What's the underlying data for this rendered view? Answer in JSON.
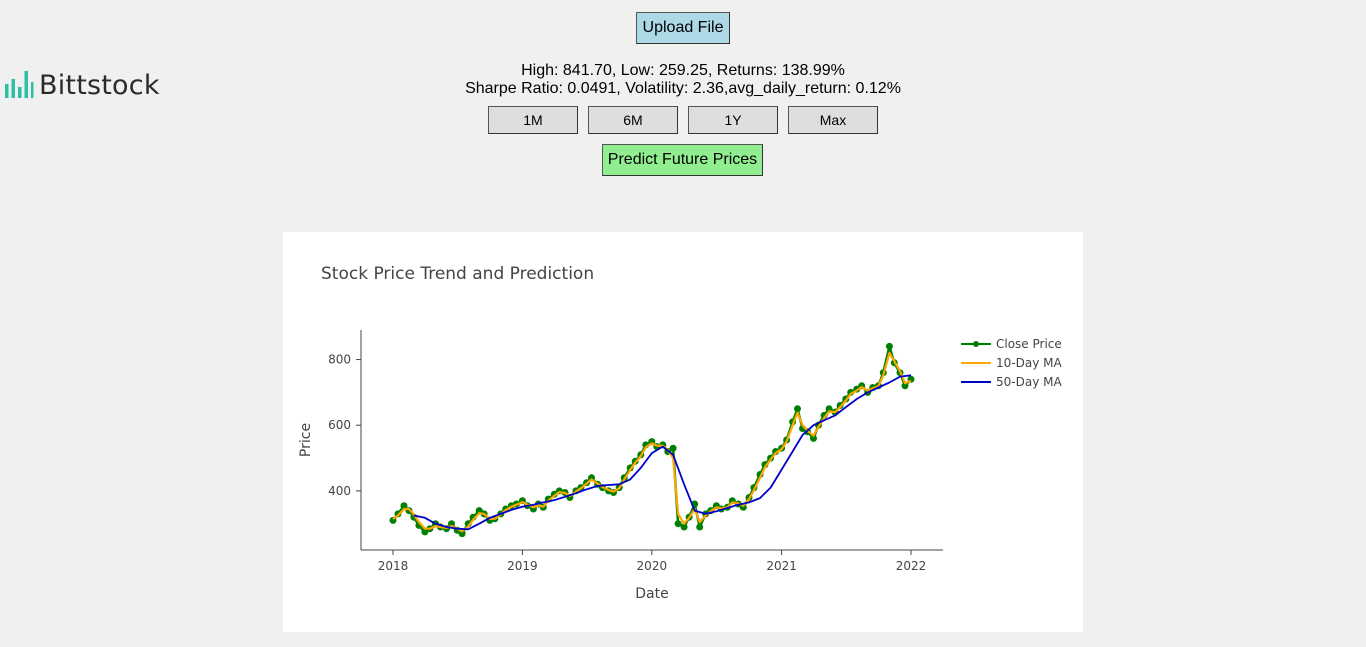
{
  "brand": {
    "name": "Bittstock",
    "icon": "bar-chart-icon",
    "color": "#2bbfa4"
  },
  "toolbar": {
    "upload_label": "Upload File",
    "predict_label": "Predict Future Prices",
    "range_buttons": [
      "1M",
      "6M",
      "1Y",
      "Max"
    ]
  },
  "stats": {
    "line1": "High: 841.70, Low: 259.25, Returns: 138.99%",
    "line2": "Sharpe Ratio: 0.0491, Volatility: 2.36,avg_daily_return: 0.12%"
  },
  "colors": {
    "upload_button": "#add8e6",
    "predict_button": "#90ee90",
    "close_price": "#008000",
    "ma10": "#ffa500",
    "ma50": "#0000cd"
  },
  "chart_data": {
    "type": "line",
    "title": "Stock Price Trend and Prediction",
    "xlabel": "Date",
    "ylabel": "Price",
    "xlim": [
      "2018-01-01",
      "2022-01-01"
    ],
    "ylim": [
      220,
      890
    ],
    "x_ticks": [
      "2018",
      "2019",
      "2020",
      "2021",
      "2022"
    ],
    "y_ticks": [
      400,
      600,
      800
    ],
    "grid": false,
    "legend": "top-right",
    "series": [
      {
        "name": "Close Price",
        "color": "#008000",
        "marker": true,
        "x": [
          "2018-01-01",
          "2018-01-15",
          "2018-02-01",
          "2018-02-15",
          "2018-03-01",
          "2018-03-15",
          "2018-04-01",
          "2018-04-15",
          "2018-05-01",
          "2018-05-15",
          "2018-06-01",
          "2018-06-15",
          "2018-07-01",
          "2018-07-15",
          "2018-08-01",
          "2018-08-15",
          "2018-09-01",
          "2018-09-15",
          "2018-10-01",
          "2018-10-15",
          "2018-11-01",
          "2018-11-15",
          "2018-12-01",
          "2018-12-15",
          "2019-01-01",
          "2019-01-15",
          "2019-02-01",
          "2019-02-15",
          "2019-03-01",
          "2019-03-15",
          "2019-04-01",
          "2019-04-15",
          "2019-05-01",
          "2019-05-15",
          "2019-06-01",
          "2019-06-15",
          "2019-07-01",
          "2019-07-15",
          "2019-08-01",
          "2019-08-15",
          "2019-09-01",
          "2019-09-15",
          "2019-10-01",
          "2019-10-15",
          "2019-11-01",
          "2019-11-15",
          "2019-12-01",
          "2019-12-15",
          "2020-01-01",
          "2020-01-15",
          "2020-02-01",
          "2020-02-15",
          "2020-03-01",
          "2020-03-15",
          "2020-04-01",
          "2020-04-15",
          "2020-05-01",
          "2020-05-15",
          "2020-06-01",
          "2020-06-15",
          "2020-07-01",
          "2020-07-15",
          "2020-08-01",
          "2020-08-15",
          "2020-09-01",
          "2020-09-15",
          "2020-10-01",
          "2020-10-15",
          "2020-11-01",
          "2020-11-15",
          "2020-12-01",
          "2020-12-15",
          "2021-01-01",
          "2021-01-15",
          "2021-02-01",
          "2021-02-15",
          "2021-03-01",
          "2021-03-15",
          "2021-04-01",
          "2021-04-15",
          "2021-05-01",
          "2021-05-15",
          "2021-06-01",
          "2021-06-15",
          "2021-07-01",
          "2021-07-15",
          "2021-08-01",
          "2021-08-15",
          "2021-09-01",
          "2021-09-15",
          "2021-10-01",
          "2021-10-15",
          "2021-11-01",
          "2021-11-15",
          "2021-12-01",
          "2021-12-15",
          "2022-01-01"
        ],
        "y": [
          310,
          330,
          355,
          340,
          320,
          295,
          275,
          285,
          300,
          290,
          285,
          300,
          280,
          270,
          300,
          320,
          340,
          330,
          310,
          315,
          330,
          345,
          355,
          360,
          370,
          355,
          345,
          360,
          350,
          375,
          390,
          400,
          395,
          380,
          400,
          410,
          425,
          440,
          420,
          410,
          400,
          395,
          410,
          440,
          470,
          490,
          510,
          540,
          550,
          535,
          540,
          520,
          530,
          300,
          290,
          320,
          360,
          290,
          330,
          340,
          355,
          345,
          350,
          370,
          360,
          350,
          380,
          410,
          450,
          480,
          500,
          520,
          530,
          555,
          610,
          650,
          590,
          580,
          560,
          600,
          630,
          650,
          640,
          660,
          680,
          700,
          710,
          720,
          700,
          715,
          720,
          760,
          840,
          790,
          760,
          720,
          740
        ]
      },
      {
        "name": "10-Day MA",
        "color": "#ffa500",
        "marker": false,
        "x": [
          "2018-01-01",
          "2018-01-15",
          "2018-02-01",
          "2018-02-15",
          "2018-03-01",
          "2018-03-15",
          "2018-04-01",
          "2018-04-15",
          "2018-05-01",
          "2018-05-15",
          "2018-06-01",
          "2018-06-15",
          "2018-07-01",
          "2018-07-15",
          "2018-08-01",
          "2018-08-15",
          "2018-09-01",
          "2018-09-15",
          "2018-10-01",
          "2018-10-15",
          "2018-11-01",
          "2018-11-15",
          "2018-12-01",
          "2018-12-15",
          "2019-01-01",
          "2019-01-15",
          "2019-02-01",
          "2019-02-15",
          "2019-03-01",
          "2019-03-15",
          "2019-04-01",
          "2019-04-15",
          "2019-05-01",
          "2019-05-15",
          "2019-06-01",
          "2019-06-15",
          "2019-07-01",
          "2019-07-15",
          "2019-08-01",
          "2019-08-15",
          "2019-09-01",
          "2019-09-15",
          "2019-10-01",
          "2019-10-15",
          "2019-11-01",
          "2019-11-15",
          "2019-12-01",
          "2019-12-15",
          "2020-01-01",
          "2020-01-15",
          "2020-02-01",
          "2020-02-15",
          "2020-03-01",
          "2020-03-15",
          "2020-04-01",
          "2020-04-15",
          "2020-05-01",
          "2020-05-15",
          "2020-06-01",
          "2020-06-15",
          "2020-07-01",
          "2020-07-15",
          "2020-08-01",
          "2020-08-15",
          "2020-09-01",
          "2020-09-15",
          "2020-10-01",
          "2020-10-15",
          "2020-11-01",
          "2020-11-15",
          "2020-12-01",
          "2020-12-15",
          "2021-01-01",
          "2021-01-15",
          "2021-02-01",
          "2021-02-15",
          "2021-03-01",
          "2021-03-15",
          "2021-04-01",
          "2021-04-15",
          "2021-05-01",
          "2021-05-15",
          "2021-06-01",
          "2021-06-15",
          "2021-07-01",
          "2021-07-15",
          "2021-08-01",
          "2021-08-15",
          "2021-09-01",
          "2021-09-15",
          "2021-10-01",
          "2021-10-15",
          "2021-11-01",
          "2021-11-15",
          "2021-12-01",
          "2021-12-15",
          "2022-01-01"
        ],
        "y": [
          315,
          325,
          345,
          345,
          328,
          305,
          285,
          285,
          293,
          290,
          287,
          293,
          285,
          277,
          292,
          312,
          332,
          330,
          315,
          315,
          328,
          342,
          352,
          358,
          366,
          358,
          350,
          356,
          352,
          370,
          385,
          396,
          394,
          384,
          398,
          408,
          422,
          435,
          422,
          412,
          403,
          398,
          408,
          435,
          464,
          486,
          506,
          533,
          545,
          538,
          537,
          525,
          500,
          330,
          300,
          318,
          345,
          305,
          325,
          338,
          350,
          347,
          350,
          365,
          362,
          355,
          375,
          402,
          440,
          472,
          495,
          515,
          527,
          550,
          600,
          638,
          600,
          583,
          568,
          595,
          622,
          642,
          640,
          655,
          675,
          695,
          706,
          716,
          705,
          712,
          719,
          752,
          820,
          795,
          765,
          728,
          735
        ]
      },
      {
        "name": "50-Day MA",
        "color": "#0000cd",
        "marker": false,
        "x": [
          "2018-03-01",
          "2018-04-01",
          "2018-05-01",
          "2018-06-01",
          "2018-07-01",
          "2018-08-01",
          "2018-09-01",
          "2018-10-01",
          "2018-11-01",
          "2018-12-01",
          "2019-01-01",
          "2019-02-01",
          "2019-03-01",
          "2019-04-01",
          "2019-05-01",
          "2019-06-01",
          "2019-07-01",
          "2019-08-01",
          "2019-09-01",
          "2019-10-01",
          "2019-11-01",
          "2019-12-01",
          "2020-01-01",
          "2020-02-01",
          "2020-03-01",
          "2020-04-01",
          "2020-05-01",
          "2020-06-01",
          "2020-07-01",
          "2020-08-01",
          "2020-09-01",
          "2020-10-01",
          "2020-11-01",
          "2020-12-01",
          "2021-01-01",
          "2021-02-01",
          "2021-03-01",
          "2021-04-01",
          "2021-05-01",
          "2021-06-01",
          "2021-07-01",
          "2021-08-01",
          "2021-09-01",
          "2021-10-01",
          "2021-11-01",
          "2021-12-01",
          "2022-01-01"
        ],
        "y": [
          325,
          318,
          300,
          290,
          285,
          283,
          300,
          318,
          330,
          342,
          352,
          358,
          365,
          372,
          382,
          393,
          405,
          415,
          418,
          420,
          435,
          470,
          515,
          535,
          510,
          420,
          340,
          330,
          338,
          348,
          358,
          365,
          378,
          410,
          465,
          520,
          570,
          600,
          615,
          630,
          655,
          680,
          700,
          715,
          730,
          748,
          752
        ]
      }
    ]
  }
}
